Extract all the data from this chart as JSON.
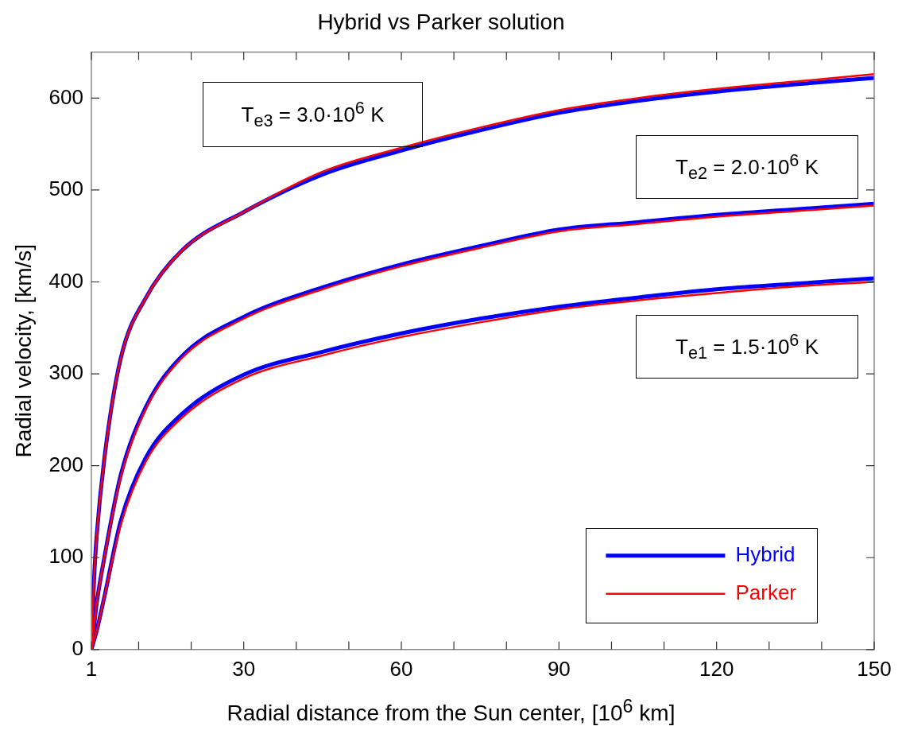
{
  "chart_data": {
    "type": "line",
    "title": "Hybrid vs Parker solution",
    "xlabel": "Radial distance from the Sun center, [10$^{6}$ km]",
    "ylabel": "Radial velocity, [km/s]",
    "x": [
      1,
      1.5,
      2,
      3.5,
      6.6,
      11.3,
      18.2,
      30,
      45,
      60,
      75,
      90,
      105,
      120,
      135,
      150
    ],
    "series": [
      {
        "name": "Hybrid",
        "color": "#0000ff",
        "values": [
          0,
          10,
          20,
          58,
          140,
          208,
          256,
          299,
          324,
          344,
          360,
          373,
          383,
          392,
          398,
          404
        ]
      },
      {
        "color": "#0000ff",
        "values": [
          0,
          25,
          50,
          101,
          190,
          263,
          319,
          362,
          394,
          419,
          439,
          457,
          465,
          473,
          479,
          485
        ]
      },
      {
        "color": "#0000ff",
        "values": [
          0,
          75,
          123,
          209,
          317,
          382,
          434,
          476,
          517,
          543,
          565,
          584,
          597,
          607,
          615,
          622
        ]
      },
      {
        "name": "Parker",
        "color": "#ff0000",
        "values": [
          0,
          10,
          20,
          58,
          136,
          204,
          252,
          295,
          320,
          340,
          356,
          370,
          380,
          388,
          395,
          400
        ]
      },
      {
        "color": "#ff0000",
        "values": [
          0,
          25,
          50,
          101,
          188,
          261,
          317,
          360,
          392,
          417,
          437,
          455,
          463,
          471,
          477,
          483
        ]
      },
      {
        "color": "#ff0000",
        "values": [
          0,
          75,
          123,
          209,
          317,
          382,
          434,
          476,
          520,
          546,
          568,
          587,
          600,
          610,
          618,
          626
        ]
      }
    ],
    "xlim": [
      1,
      150
    ],
    "ylim": [
      0,
      650
    ],
    "xticks": [
      1,
      {
        "value": 10,
        "label": null
      },
      {
        "value": 20,
        "label": null
      },
      30,
      {
        "value": 40,
        "label": null
      },
      {
        "value": 50,
        "label": null
      },
      60,
      {
        "value": 70,
        "label": null
      },
      {
        "value": 80,
        "label": null
      },
      90,
      {
        "value": 100,
        "label": null
      },
      {
        "value": 110,
        "label": null
      },
      120,
      {
        "value": 130,
        "label": null
      },
      {
        "value": 140,
        "label": null
      },
      150
    ],
    "yticks": [
      0,
      100,
      200,
      300,
      400,
      500,
      600
    ],
    "annotations": [
      "T$_{e3}$ = 3.0·10$^{6}$ K",
      "T$_{e2}$ = 2.0·10$^{6}$ K",
      "T$_{e1}$ = 1.5·10$^{6}$ K"
    ],
    "grid": false,
    "legend": "bottom right",
    "marker": "none",
    "line_style": "solid"
  }
}
